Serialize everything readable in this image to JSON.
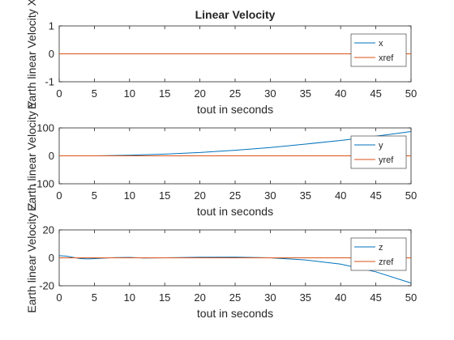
{
  "chart_data": [
    {
      "type": "line",
      "title": "Linear Velocity",
      "xlabel": "tout in seconds",
      "ylabel": "Earth linear Velocity X",
      "xlim": [
        0,
        50
      ],
      "ylim": [
        -1,
        1
      ],
      "xticks": [
        "0",
        "5",
        "10",
        "15",
        "20",
        "25",
        "30",
        "35",
        "40",
        "45",
        "50"
      ],
      "yticks": [
        "-1",
        "0",
        "1"
      ],
      "grid": false,
      "legend_position": "top-right",
      "series": [
        {
          "name": "x",
          "color": "#0072BD",
          "x": [
            0,
            50
          ],
          "y": [
            0,
            0
          ]
        },
        {
          "name": "xref",
          "color": "#D95319",
          "x": [
            0,
            50
          ],
          "y": [
            0,
            0
          ]
        }
      ]
    },
    {
      "type": "line",
      "title": "",
      "xlabel": "tout in seconds",
      "ylabel": "Earth linear Velocity Y",
      "xlim": [
        0,
        50
      ],
      "ylim": [
        -100,
        100
      ],
      "xticks": [
        "0",
        "5",
        "10",
        "15",
        "20",
        "25",
        "30",
        "35",
        "40",
        "45",
        "50"
      ],
      "yticks": [
        "-100",
        "0",
        "100"
      ],
      "grid": false,
      "legend_position": "top-right",
      "series": [
        {
          "name": "y",
          "color": "#0072BD",
          "x": [
            0,
            5,
            10,
            15,
            20,
            25,
            30,
            35,
            40,
            45,
            50
          ],
          "y": [
            0,
            0,
            2,
            6,
            12,
            20,
            30,
            42,
            55,
            70,
            87
          ]
        },
        {
          "name": "yref",
          "color": "#D95319",
          "x": [
            0,
            50
          ],
          "y": [
            0,
            0
          ]
        }
      ]
    },
    {
      "type": "line",
      "title": "",
      "xlabel": "tout in seconds",
      "ylabel": "Earth linear Velocity Z",
      "xlim": [
        0,
        50
      ],
      "ylim": [
        -20,
        20
      ],
      "xticks": [
        "0",
        "5",
        "10",
        "15",
        "20",
        "25",
        "30",
        "35",
        "40",
        "45",
        "50"
      ],
      "yticks": [
        "-20",
        "0",
        "20"
      ],
      "grid": false,
      "legend_position": "top-right",
      "series": [
        {
          "name": "z",
          "color": "#0072BD",
          "x": [
            0,
            1,
            2,
            3,
            4,
            5,
            6,
            8,
            10,
            12,
            15,
            20,
            25,
            30,
            35,
            40,
            45,
            50
          ],
          "y": [
            1.5,
            1.2,
            0.3,
            -0.5,
            -0.8,
            -0.6,
            -0.3,
            0.2,
            0.3,
            -0.2,
            0.0,
            0.4,
            0.5,
            0.0,
            -1.5,
            -4.5,
            -10,
            -18
          ]
        },
        {
          "name": "zref",
          "color": "#D95319",
          "x": [
            0,
            50
          ],
          "y": [
            0,
            0
          ]
        }
      ]
    }
  ]
}
